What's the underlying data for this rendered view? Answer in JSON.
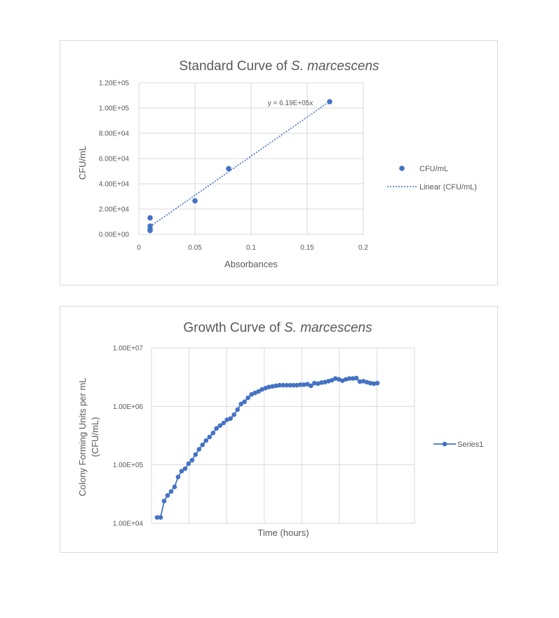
{
  "chart_data": [
    {
      "type": "scatter",
      "title": "Standard Curve of",
      "title_italic": "S. marcescens",
      "xlabel": "Absorbances",
      "ylabel": "CFU/mL",
      "xlim": [
        0,
        0.2
      ],
      "ylim": [
        0,
        120000
      ],
      "x_ticks": [
        "0",
        "0.05",
        "0.1",
        "0.15",
        "0.2"
      ],
      "y_ticks": [
        "0.00E+00",
        "2.00E+04",
        "4.00E+04",
        "6.00E+04",
        "8.00E+04",
        "1.00E+05",
        "1.20E+05"
      ],
      "grid": true,
      "legend_position": "right",
      "series": [
        {
          "name": "CFU/mL",
          "x": [
            0.01,
            0.01,
            0.01,
            0.01,
            0.05,
            0.08,
            0.17
          ],
          "y": [
            13000,
            6500,
            4000,
            3000,
            26500,
            52000,
            105000
          ]
        }
      ],
      "trendline": {
        "name": "Linear (CFU/mL)",
        "slope": 619000,
        "x_range": [
          0.01,
          0.17
        ],
        "equation": "y = 6.19E+05x"
      },
      "colors": {
        "series": "#4472c4"
      }
    },
    {
      "type": "line",
      "title": "Growth Curve of",
      "title_italic": "S. marcescens",
      "xlabel": "Time (hours)",
      "ylabel": "Colony Forming Units per mL (CFU/mL)",
      "ylabel_lines": [
        "Colony Forming Units per mL",
        "(CFU/mL)"
      ],
      "y_scale": "log",
      "ylim": [
        10000,
        10000000
      ],
      "y_ticks": [
        "1.00E+04",
        "1.00E+05",
        "1.00E+06",
        "1.00E+07"
      ],
      "grid": true,
      "legend_position": "right",
      "series": [
        {
          "name": "Series1",
          "values": [
            12600,
            12600,
            24000,
            30000,
            35000,
            42000,
            62000,
            78000,
            86000,
            105000,
            120000,
            150000,
            185000,
            220000,
            260000,
            300000,
            350000,
            420000,
            470000,
            520000,
            590000,
            620000,
            720000,
            880000,
            1100000,
            1200000,
            1400000,
            1600000,
            1700000,
            1800000,
            1950000,
            2050000,
            2150000,
            2200000,
            2250000,
            2300000,
            2300000,
            2300000,
            2300000,
            2300000,
            2300000,
            2350000,
            2350000,
            2400000,
            2250000,
            2500000,
            2450000,
            2550000,
            2600000,
            2700000,
            2800000,
            3000000,
            2900000,
            2750000,
            2900000,
            3000000,
            3000000,
            3050000,
            2650000,
            2700000,
            2600000,
            2500000,
            2450000,
            2500000
          ]
        }
      ],
      "colors": {
        "series": "#4472c4"
      }
    }
  ]
}
